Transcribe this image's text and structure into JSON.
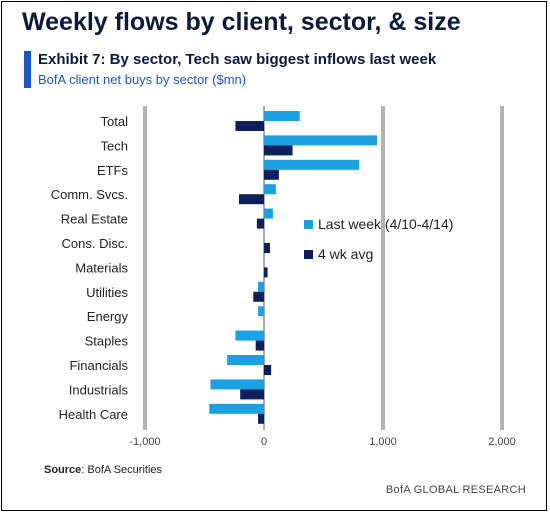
{
  "header": {
    "title": "Weekly flows by client, sector, & size",
    "exhibit": "Exhibit 7: By sector, Tech saw biggest inflows last week",
    "subtitle": "BofA client net buys by sector ($mn)"
  },
  "footer": {
    "source_label": "Source",
    "source_text": ":  BofA Securities",
    "brand": "BofA GLOBAL RESEARCH"
  },
  "colors": {
    "last_week": "#1ba0e2",
    "four_wk_avg": "#0e1f5b",
    "gridline": "#b3b3b3"
  },
  "chart_data": {
    "type": "bar",
    "orientation": "horizontal",
    "categories": [
      "Total",
      "Tech",
      "ETFs",
      "Comm. Svcs.",
      "Real Estate",
      "Cons. Disc.",
      "Materials",
      "Utilities",
      "Energy",
      "Staples",
      "Financials",
      "Industrials",
      "Health Care"
    ],
    "series": [
      {
        "name": "Last week (4/10-4/14)",
        "values": [
          300,
          950,
          800,
          100,
          75,
          0,
          0,
          -50,
          -50,
          -240,
          -310,
          -450,
          -460
        ]
      },
      {
        "name": "4 wk avg",
        "values": [
          -240,
          240,
          125,
          -210,
          -60,
          50,
          30,
          -90,
          0,
          -70,
          60,
          -200,
          -50
        ]
      }
    ],
    "xlim": [
      -1000,
      2000
    ],
    "xticks": [
      -1000,
      0,
      1000,
      2000
    ],
    "xtick_labels": [
      "-1,000",
      "0",
      "1,000",
      "2,000"
    ],
    "grid": "vertical",
    "legend_position": "center-right"
  }
}
